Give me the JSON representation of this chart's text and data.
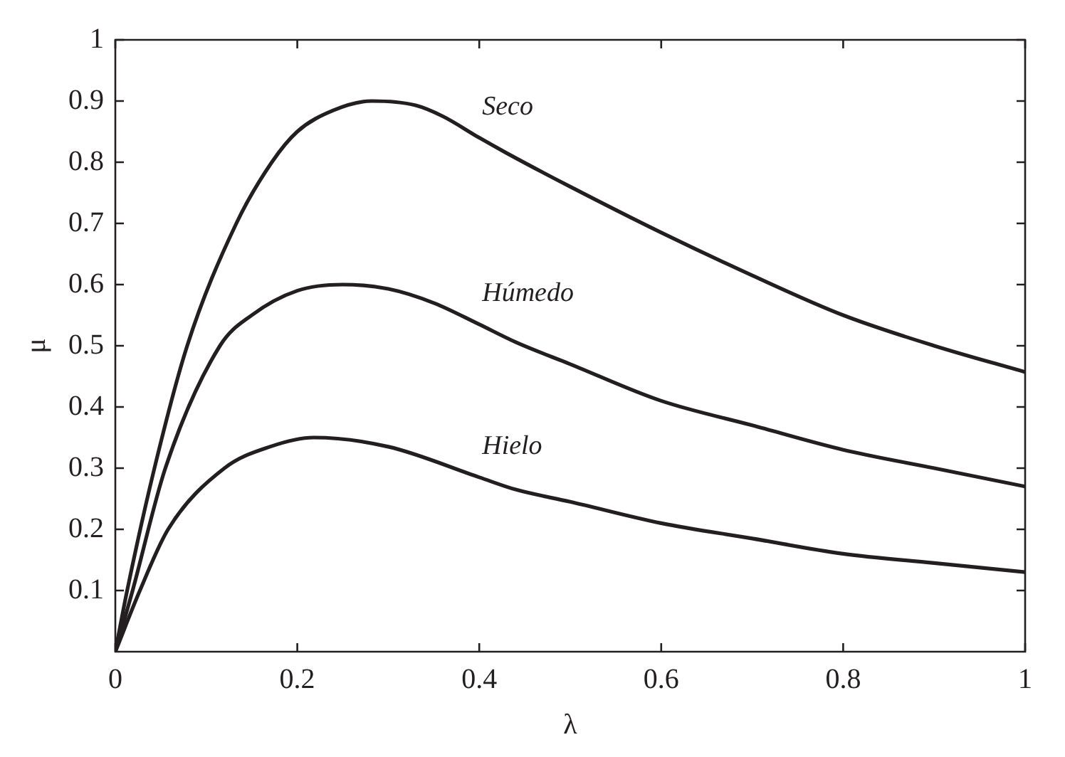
{
  "chart_data": {
    "type": "line",
    "xlabel": "λ",
    "ylabel": "μ",
    "xlim": [
      0,
      1
    ],
    "ylim": [
      0,
      1
    ],
    "xticks": [
      0,
      0.2,
      0.4,
      0.6,
      0.8,
      1
    ],
    "yticks": [
      0.1,
      0.2,
      0.3,
      0.4,
      0.5,
      0.6,
      0.7,
      0.8,
      0.9,
      1
    ],
    "grid": false,
    "legend": false,
    "marker": "none",
    "line_style": "solid",
    "series": [
      {
        "name": "Seco",
        "color": "#231f20",
        "x": [
          0,
          0.013,
          0.043,
          0.079,
          0.133,
          0.172,
          0.2,
          0.24,
          0.282,
          0.33,
          0.36,
          0.4,
          0.43,
          0.5,
          0.6,
          0.7,
          0.8,
          0.9,
          1
        ],
        "values": [
          0,
          0.1,
          0.3,
          0.5,
          0.7,
          0.8,
          0.85,
          0.885,
          0.9,
          0.893,
          0.875,
          0.84,
          0.815,
          0.76,
          0.685,
          0.615,
          0.55,
          0.5,
          0.457
        ]
      },
      {
        "name": "Húmedo",
        "color": "#231f20",
        "x": [
          0,
          0.019,
          0.055,
          0.115,
          0.15,
          0.2,
          0.25,
          0.3,
          0.35,
          0.4,
          0.44,
          0.5,
          0.6,
          0.7,
          0.8,
          0.9,
          1
        ],
        "values": [
          0,
          0.1,
          0.3,
          0.5,
          0.55,
          0.59,
          0.6,
          0.593,
          0.57,
          0.535,
          0.506,
          0.47,
          0.41,
          0.37,
          0.33,
          0.3,
          0.27
        ]
      },
      {
        "name": "Hielo",
        "color": "#231f20",
        "x": [
          0,
          0.027,
          0.058,
          0.12,
          0.17,
          0.218,
          0.3,
          0.4,
          0.44,
          0.5,
          0.6,
          0.7,
          0.8,
          0.9,
          1
        ],
        "values": [
          0,
          0.1,
          0.2,
          0.3,
          0.335,
          0.35,
          0.335,
          0.285,
          0.265,
          0.245,
          0.21,
          0.185,
          0.16,
          0.145,
          0.13
        ]
      }
    ]
  }
}
